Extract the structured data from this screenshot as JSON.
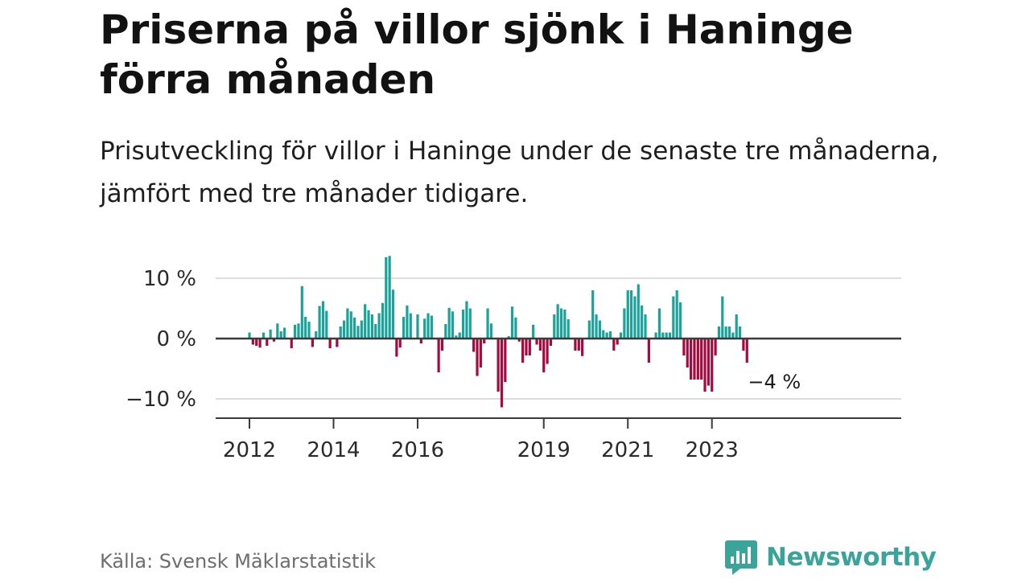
{
  "header": {
    "title": "Priserna på villor sjönk i Haninge förra månaden",
    "subtitle": "Prisutveckling för villor i Haninge under de senaste tre månaderna, jämfört med tre månader tidigare."
  },
  "footer": {
    "source": "Källa: Svensk Mäklarstatistik",
    "brand": "Newsworthy"
  },
  "colors": {
    "positive": "#1aa39a",
    "negative": "#a6093d",
    "brand": "#3aa39a"
  },
  "chart_data": {
    "type": "bar",
    "title": "Priserna på villor sjönk i Haninge förra månaden",
    "xlabel": "",
    "ylabel": "",
    "ylim": [
      -13.5,
      13.5
    ],
    "y_ticks": [
      10,
      0,
      -10
    ],
    "y_tick_labels": [
      "10 %",
      "0 %",
      "−10 %"
    ],
    "x_ticks": [
      "2012",
      "2014",
      "2016",
      "2019",
      "2021",
      "2023"
    ],
    "start": "2012-01",
    "end_label": "−4 %",
    "values": [
      1,
      -1,
      -1.2,
      -1.5,
      1,
      -1.2,
      1.5,
      -0.5,
      2.5,
      1.2,
      1.8,
      0,
      -1.6,
      2.3,
      2.5,
      8.7,
      3.6,
      2.8,
      -1.4,
      1.2,
      5.4,
      6.2,
      4.6,
      -1.6,
      0,
      -1.4,
      2,
      3,
      5,
      4.5,
      3.5,
      2.1,
      3,
      5.7,
      4.7,
      4,
      2.4,
      4.2,
      5.9,
      13.5,
      13.7,
      8.1,
      -3,
      -1.5,
      3.6,
      5.5,
      4.2,
      0,
      4,
      -0.8,
      3.3,
      4.2,
      3.8,
      0,
      -5.6,
      -2,
      2.4,
      5.1,
      4.5,
      0.5,
      1,
      4.8,
      6.2,
      5,
      -2.2,
      -6.2,
      -4.8,
      -0.8,
      5,
      2.5,
      0,
      -8.8,
      -11.4,
      -7.2,
      0.4,
      5.3,
      3.5,
      -0.5,
      -4,
      -2.8,
      -2.8,
      2.3,
      -1,
      -2,
      -5.6,
      -4.2,
      -1.2,
      4,
      5.7,
      5,
      4.8,
      3.2,
      0,
      -2,
      -2,
      -2.9,
      0,
      3,
      8,
      4,
      3,
      1.4,
      1,
      1.2,
      -2,
      -1,
      1,
      5,
      8,
      8,
      7,
      9,
      5.5,
      4,
      -4,
      0,
      1,
      5,
      1,
      1,
      1,
      7,
      8,
      6,
      -2.8,
      -4.8,
      -6.8,
      -6.8,
      -6.8,
      -6.8,
      -8.8,
      -7.8,
      -8.8,
      -2.8,
      2,
      7,
      2,
      2,
      1,
      4,
      2,
      -2,
      -4
    ]
  }
}
